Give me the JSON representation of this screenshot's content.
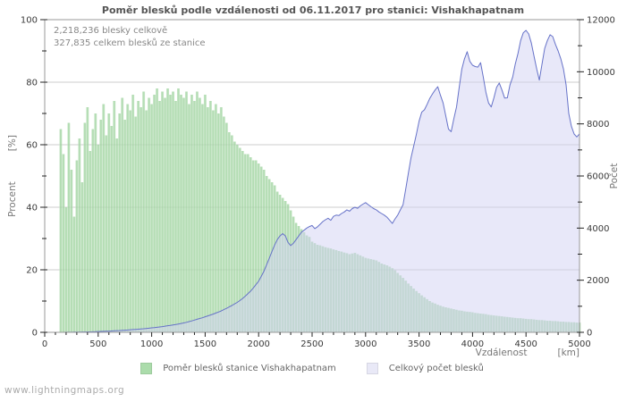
{
  "title": "Poměr blesků podle vzdálenosti od 06.11.2017 pro stanici: Vishakhapatnam",
  "annotation": {
    "line1": "2,218,236 blesky celkově",
    "line2": "327,835 celkem blesků ze stanice"
  },
  "footer": "www.lightningmaps.org",
  "colors": {
    "bar": "#a2d5a2",
    "bar_gap": "#c6e5c6",
    "area_fill": "rgba(210,210,243,0.5)",
    "line": "#6672c8",
    "grid": "#cccccc",
    "border": "#999999",
    "tick": "#222222",
    "legend_green": "#abdcab",
    "legend_lavender": "#e9e9f7"
  },
  "legend": {
    "items": [
      {
        "label": "Poměr blesků stanice Vishakhapatnam",
        "color": "#abdcab"
      },
      {
        "label": "Celkový počet blesků",
        "color": "#e9e9f7"
      }
    ]
  },
  "chart_data": {
    "type": "bar+area",
    "title": "Poměr blesků podle vzdálenosti od 06.11.2017 pro stanici: Vishakhapatnam",
    "xlabel": "Vzdálenost   [km]",
    "ylabel_left": "Procent   [%]",
    "ylabel_right": "Počet",
    "xlim": [
      0,
      5000
    ],
    "ylim_left": [
      0,
      100
    ],
    "ylim_right": [
      0,
      12000
    ],
    "x_ticks": [
      0,
      500,
      1000,
      1500,
      2000,
      2500,
      3000,
      3500,
      4000,
      4500,
      5000
    ],
    "x_minor_step": 100,
    "y_ticks_left": [
      0,
      20,
      40,
      60,
      80,
      100
    ],
    "y_left_minor_step": 10,
    "y_ticks_right": [
      0,
      2000,
      4000,
      6000,
      8000,
      10000,
      12000
    ],
    "y_right_minor_step": 1000,
    "grid": "horizontal-left-axis",
    "legend_position": "bottom-center",
    "x_start": 150,
    "x_step": 25,
    "series": [
      {
        "name": "Poměr blesků stanice Vishakhapatnam",
        "type": "bar",
        "axis": "left",
        "unit": "%",
        "values": [
          65,
          57,
          40,
          67,
          52,
          37,
          55,
          62,
          48,
          67,
          72,
          58,
          65,
          70,
          60,
          68,
          73,
          63,
          70,
          66,
          74,
          62,
          70,
          75,
          68,
          73,
          71,
          76,
          69,
          74,
          72,
          77,
          71,
          75,
          73,
          76,
          78,
          74,
          77,
          75,
          78,
          76,
          77,
          74,
          78,
          76,
          75,
          77,
          73,
          76,
          74,
          77,
          75,
          73,
          76,
          72,
          74,
          71,
          73,
          70,
          72,
          69,
          67,
          64,
          63,
          61,
          60,
          59,
          58,
          57,
          57,
          56,
          55,
          55,
          54,
          53,
          52,
          50,
          49,
          48,
          47,
          45,
          44,
          43,
          42,
          41,
          39,
          37,
          35,
          34,
          33,
          32,
          31,
          30.5,
          29,
          28.5,
          28,
          27.8,
          27.5,
          27.2,
          27,
          26.8,
          26.5,
          26.3,
          26,
          25.8,
          25.5,
          25.3,
          25,
          25.2,
          25.4,
          25,
          24.6,
          24.2,
          23.8,
          23.6,
          23.4,
          23.2,
          23,
          22.5,
          22,
          21.7,
          21.4,
          21,
          20.5,
          19.8,
          19,
          18.2,
          17.4,
          16.5,
          15.6,
          14.8,
          14,
          13.2,
          12.5,
          11.8,
          11.2,
          10.6,
          10,
          9.5,
          9.2,
          8.8,
          8.5,
          8.2,
          8,
          7.8,
          7.6,
          7.4,
          7.2,
          7,
          6.9,
          6.7,
          6.6,
          6.5,
          6.4,
          6.2,
          6.1,
          6,
          5.9,
          5.8,
          5.6,
          5.5,
          5.4,
          5.3,
          5.2,
          5.1,
          5,
          4.9,
          4.8,
          4.7,
          4.6,
          4.5,
          4.5,
          4.4,
          4.3,
          4.2,
          4.2,
          4.1,
          4,
          3.9,
          3.9,
          3.8,
          3.7,
          3.7,
          3.6,
          3.6,
          3.5,
          3.4,
          3.4,
          3.3,
          3.3,
          3.2,
          3.2,
          3.1,
          3.1
        ]
      },
      {
        "name": "Celkový počet blesků",
        "type": "area",
        "axis": "right",
        "unit": "count",
        "values": [
          0,
          0,
          2,
          3,
          5,
          6,
          8,
          10,
          12,
          14,
          16,
          18,
          22,
          25,
          30,
          34,
          38,
          42,
          46,
          52,
          58,
          64,
          70,
          76,
          84,
          90,
          98,
          105,
          112,
          120,
          130,
          138,
          148,
          158,
          170,
          180,
          192,
          205,
          220,
          235,
          252,
          268,
          285,
          300,
          320,
          340,
          360,
          385,
          410,
          440,
          470,
          500,
          530,
          560,
          595,
          630,
          665,
          700,
          740,
          780,
          820,
          870,
          920,
          975,
          1030,
          1090,
          1150,
          1220,
          1300,
          1390,
          1480,
          1580,
          1700,
          1830,
          1960,
          2150,
          2350,
          2600,
          2850,
          3100,
          3350,
          3560,
          3700,
          3790,
          3700,
          3450,
          3330,
          3420,
          3560,
          3700,
          3840,
          3920,
          4000,
          4060,
          4100,
          3980,
          4050,
          4150,
          4250,
          4320,
          4380,
          4300,
          4450,
          4500,
          4480,
          4560,
          4620,
          4700,
          4650,
          4750,
          4800,
          4760,
          4850,
          4920,
          4980,
          4900,
          4820,
          4750,
          4700,
          4620,
          4560,
          4500,
          4420,
          4300,
          4180,
          4350,
          4500,
          4700,
          4900,
          5500,
          6100,
          6700,
          7150,
          7600,
          8100,
          8450,
          8540,
          8750,
          8980,
          9150,
          9300,
          9430,
          9100,
          8800,
          8300,
          7800,
          7700,
          8200,
          8650,
          9400,
          10100,
          10500,
          10770,
          10400,
          10250,
          10200,
          10180,
          10350,
          9800,
          9220,
          8800,
          8650,
          9000,
          9400,
          9570,
          9300,
          8990,
          9000,
          9500,
          9800,
          10300,
          10700,
          11200,
          11500,
          11590,
          11450,
          11100,
          10590,
          10100,
          9680,
          10300,
          10900,
          11200,
          11420,
          11350,
          11050,
          10800,
          10500,
          10100,
          9500,
          8400,
          7900,
          7610,
          7500,
          7620
        ]
      }
    ]
  }
}
